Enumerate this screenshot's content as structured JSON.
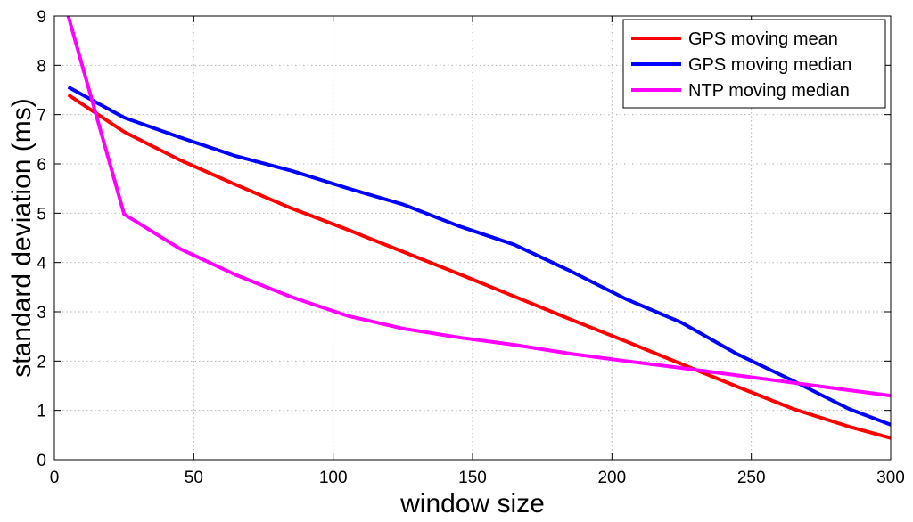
{
  "chart_data": {
    "type": "line",
    "xlabel": "window size",
    "ylabel": "standard deviation (ms)",
    "xlim": [
      0,
      300
    ],
    "ylim": [
      0,
      9
    ],
    "xticks": [
      0,
      50,
      100,
      150,
      200,
      250,
      300
    ],
    "yticks": [
      0,
      1,
      2,
      3,
      4,
      5,
      6,
      7,
      8,
      9
    ],
    "grid": true,
    "legend_position": "top-right",
    "series": [
      {
        "name": "GPS moving mean",
        "color": "#ff0000",
        "x": [
          5,
          25,
          45,
          65,
          85,
          105,
          125,
          145,
          165,
          185,
          205,
          225,
          245,
          265,
          285,
          300
        ],
        "y": [
          7.4,
          6.65,
          6.08,
          5.58,
          5.1,
          4.67,
          4.22,
          3.77,
          3.31,
          2.85,
          2.4,
          1.94,
          1.48,
          1.03,
          0.67,
          0.44
        ]
      },
      {
        "name": "GPS moving median",
        "color": "#0000ff",
        "x": [
          5,
          25,
          45,
          65,
          85,
          105,
          125,
          145,
          165,
          185,
          205,
          225,
          245,
          265,
          285,
          300
        ],
        "y": [
          7.56,
          6.94,
          6.54,
          6.16,
          5.86,
          5.51,
          5.18,
          4.74,
          4.36,
          3.83,
          3.26,
          2.78,
          2.14,
          1.6,
          1.03,
          0.71
        ]
      },
      {
        "name": "NTP moving median",
        "color": "#ff00ff",
        "x": [
          5,
          25,
          45,
          65,
          85,
          105,
          125,
          145,
          165,
          185,
          205,
          225,
          245,
          265,
          285,
          300
        ],
        "y": [
          9.0,
          4.98,
          4.28,
          3.75,
          3.3,
          2.92,
          2.66,
          2.48,
          2.33,
          2.15,
          2.0,
          1.86,
          1.71,
          1.56,
          1.41,
          1.3
        ]
      }
    ]
  }
}
